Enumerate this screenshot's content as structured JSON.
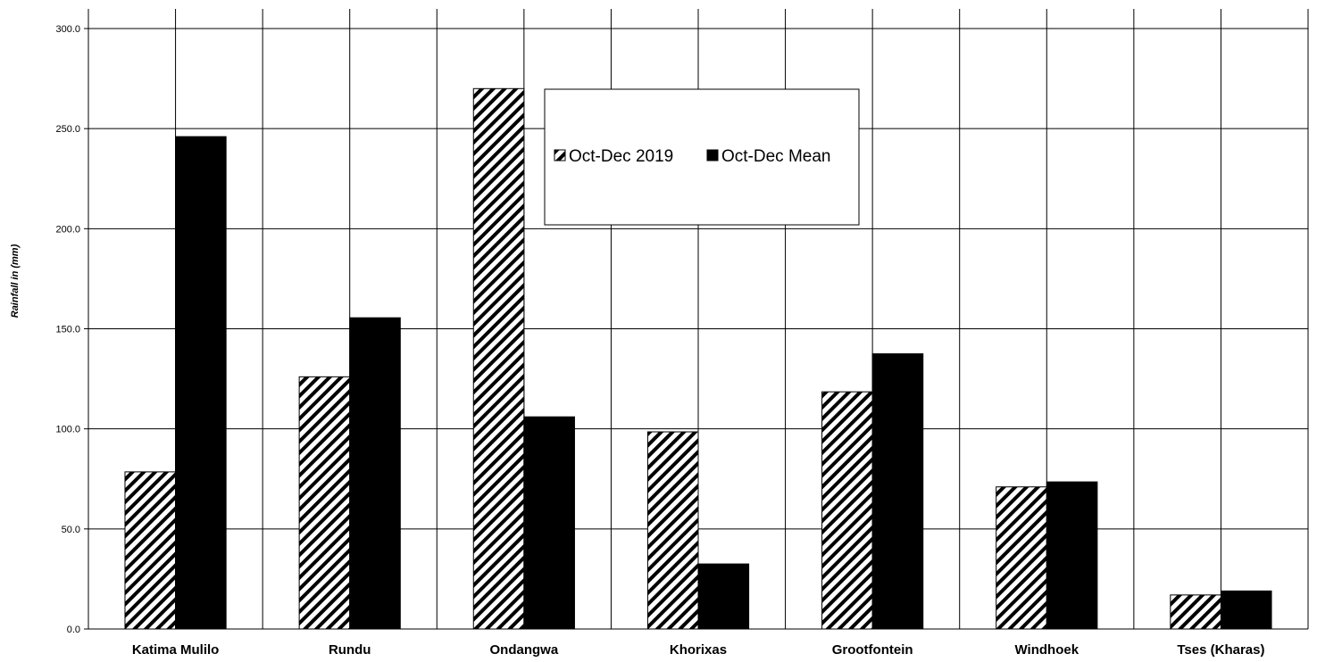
{
  "chart_data": {
    "type": "bar",
    "categories": [
      "Katima Mulilo",
      "Rundu",
      "Ondangwa",
      "Khorixas",
      "Grootfontein",
      "Windhoek",
      "Tses (Kharas)"
    ],
    "series": [
      {
        "name": "Oct-Dec 2019",
        "fill": "hatch",
        "values": [
          78.5,
          126.0,
          270.0,
          98.5,
          118.5,
          71.0,
          17.0
        ]
      },
      {
        "name": "Oct-Dec Mean",
        "fill": "#000000",
        "values": [
          246.0,
          155.5,
          106.0,
          32.5,
          137.5,
          73.5,
          19.0
        ]
      }
    ],
    "title": "",
    "xlabel": "",
    "ylabel": "Rainfall in (mm)",
    "ylim": [
      0,
      300
    ],
    "yticks": [
      "0.0",
      "50.0",
      "100.0",
      "150.0",
      "200.0",
      "250.0",
      "300.0"
    ],
    "grid": "on",
    "legend_position": "top-center"
  },
  "colors": {
    "bar_outline": "#000000",
    "grid": "#000000",
    "background": "#ffffff"
  }
}
